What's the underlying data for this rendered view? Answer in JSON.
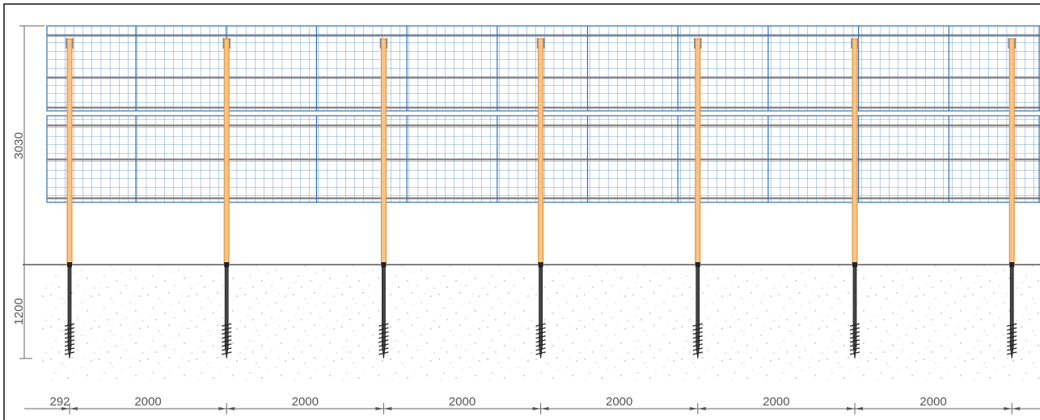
{
  "dimensions": {
    "height": 3030,
    "depth": 1200,
    "edge_offset": 292,
    "spacings": [
      2000,
      2000,
      2000,
      2000,
      2000,
      2000
    ]
  }
}
